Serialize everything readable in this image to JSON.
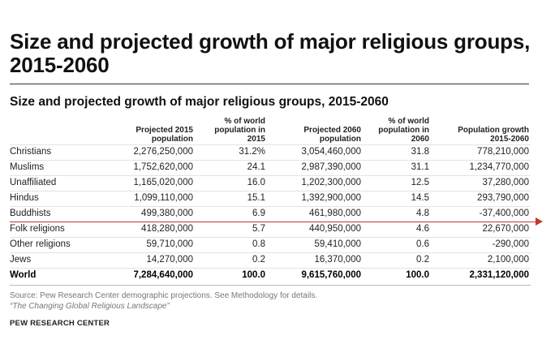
{
  "header": {
    "title": "Size and projected growth of major religious groups, 2015-2060"
  },
  "chart_data": {
    "type": "table",
    "title": "Size and projected growth of major religious groups, 2015-2060",
    "columns": [
      "",
      "Projected 2015\npopulation",
      "% of world\npopulation in\n2015",
      "Projected 2060\npopulation",
      "% of world\npopulation in\n2060",
      "Population growth\n2015-2060"
    ],
    "rows": [
      [
        "Christians",
        "2,276,250,000",
        "31.2%",
        "3,054,460,000",
        "31.8",
        "778,210,000"
      ],
      [
        "Muslims",
        "1,752,620,000",
        "24.1",
        "2,987,390,000",
        "31.1",
        "1,234,770,000"
      ],
      [
        "Unaffiliated",
        "1,165,020,000",
        "16.0",
        "1,202,300,000",
        "12.5",
        "37,280,000"
      ],
      [
        "Hindus",
        "1,099,110,000",
        "15.1",
        "1,392,900,000",
        "14.5",
        "293,790,000"
      ],
      [
        "Buddhists",
        "499,380,000",
        "6.9",
        "461,980,000",
        "4.8",
        "-37,400,000"
      ],
      [
        "Folk religions",
        "418,280,000",
        "5.7",
        "440,950,000",
        "4.6",
        "22,670,000"
      ],
      [
        "Other religions",
        "59,710,000",
        "0.8",
        "59,410,000",
        "0.6",
        "-290,000"
      ],
      [
        "Jews",
        "14,270,000",
        "0.2",
        "16,370,000",
        "0.2",
        "2,100,000"
      ],
      [
        "World",
        "7,284,640,000",
        "100.0",
        "9,615,760,000",
        "100.0",
        "2,331,120,000"
      ]
    ]
  },
  "footer": {
    "source": "Source: Pew Research Center demographic projections. See Methodology for details.",
    "note": "“The Changing Global Religious Landscape”",
    "credit": "PEW RESEARCH CENTER"
  },
  "colors": {
    "annotation_line": "#c0392b",
    "text": "#222222",
    "muted": "#777777"
  }
}
